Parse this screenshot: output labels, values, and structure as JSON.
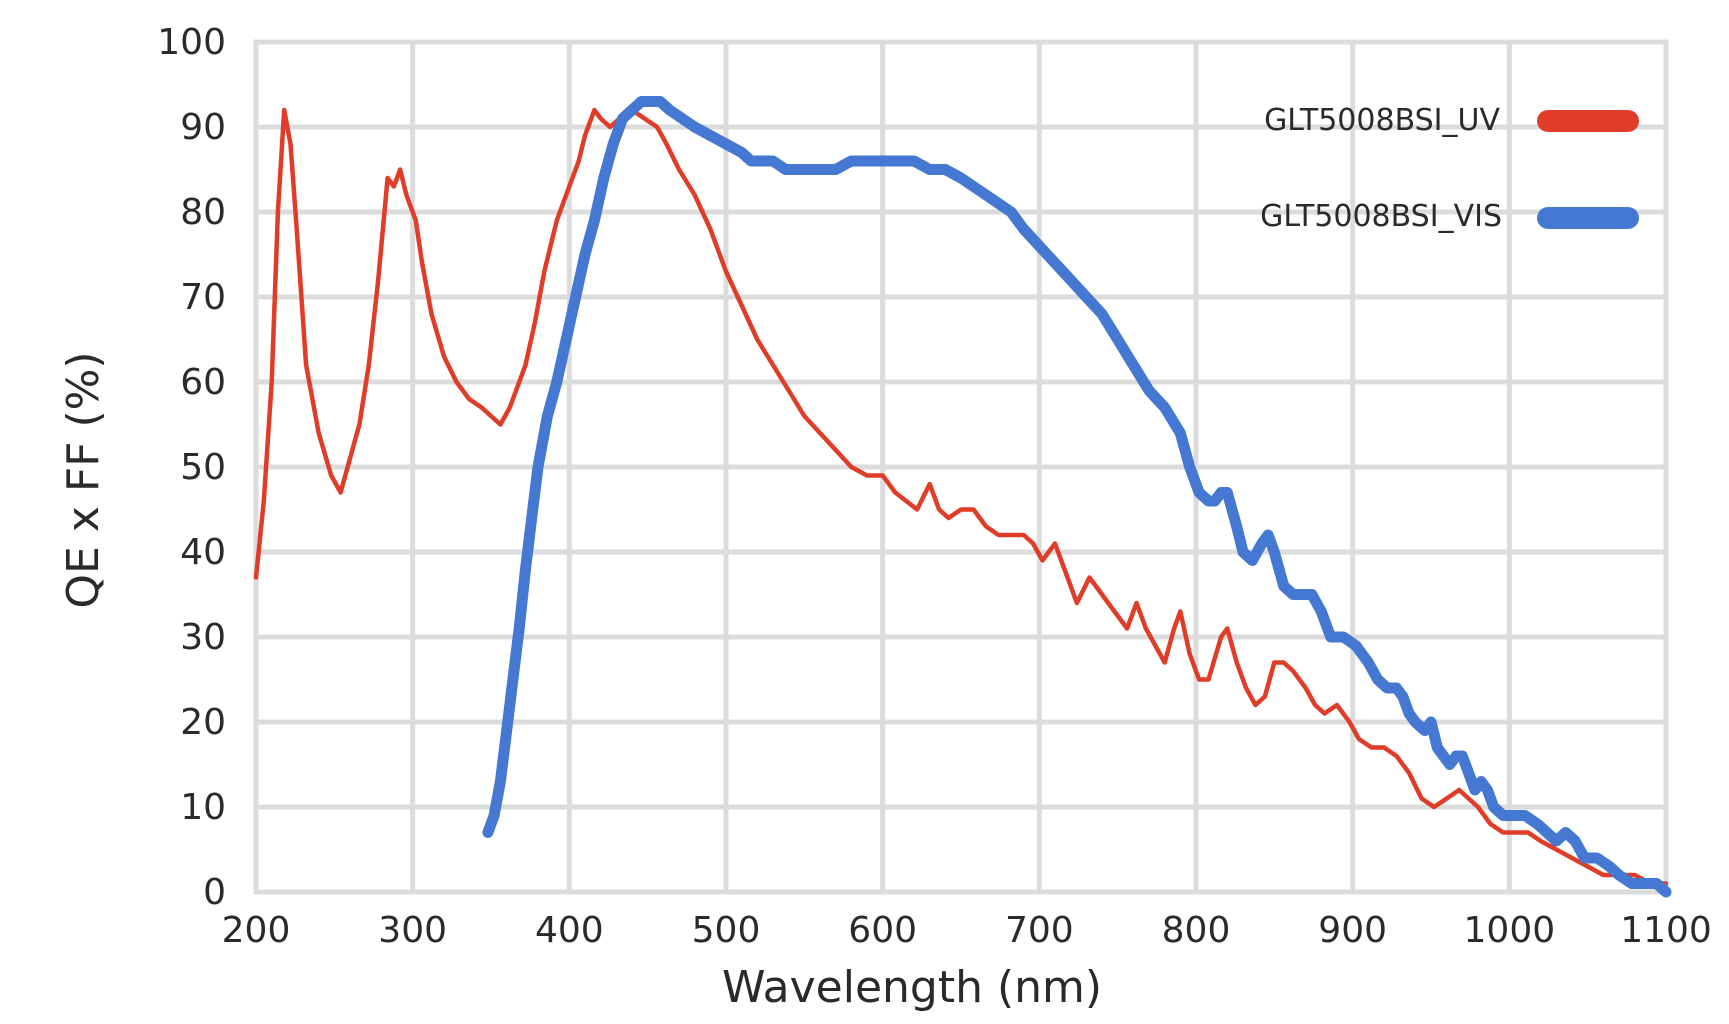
{
  "chart_data": {
    "type": "line",
    "title": "",
    "xlabel": "Wavelength (nm)",
    "ylabel": "QE x FF (%)",
    "xlim": [
      200,
      1100
    ],
    "ylim": [
      0,
      100
    ],
    "x_ticks": [
      200,
      300,
      400,
      500,
      600,
      700,
      800,
      900,
      1000,
      1100
    ],
    "y_ticks": [
      0,
      10,
      20,
      30,
      40,
      50,
      60,
      70,
      80,
      90,
      100
    ],
    "grid": true,
    "legend_position": "top-right",
    "series": [
      {
        "name": "GLT5008BSI_UV",
        "color": "#e03c28",
        "line_width": "thin",
        "points": [
          [
            200,
            37
          ],
          [
            205,
            46
          ],
          [
            210,
            60
          ],
          [
            214,
            80
          ],
          [
            218,
            92
          ],
          [
            222,
            88
          ],
          [
            226,
            78
          ],
          [
            232,
            62
          ],
          [
            240,
            54
          ],
          [
            248,
            49
          ],
          [
            254,
            47
          ],
          [
            260,
            51
          ],
          [
            266,
            55
          ],
          [
            272,
            62
          ],
          [
            278,
            72
          ],
          [
            284,
            84
          ],
          [
            288,
            83
          ],
          [
            292,
            85
          ],
          [
            296,
            82
          ],
          [
            302,
            79
          ],
          [
            306,
            74
          ],
          [
            312,
            68
          ],
          [
            320,
            63
          ],
          [
            328,
            60
          ],
          [
            336,
            58
          ],
          [
            344,
            57
          ],
          [
            350,
            56
          ],
          [
            356,
            55
          ],
          [
            362,
            57
          ],
          [
            366,
            59
          ],
          [
            372,
            62
          ],
          [
            378,
            67
          ],
          [
            384,
            73
          ],
          [
            392,
            79
          ],
          [
            400,
            83
          ],
          [
            406,
            86
          ],
          [
            410,
            89
          ],
          [
            416,
            92
          ],
          [
            420,
            91
          ],
          [
            426,
            90
          ],
          [
            432,
            91
          ],
          [
            440,
            92
          ],
          [
            448,
            91
          ],
          [
            456,
            90
          ],
          [
            462,
            88
          ],
          [
            470,
            85
          ],
          [
            480,
            82
          ],
          [
            490,
            78
          ],
          [
            500,
            73
          ],
          [
            510,
            69
          ],
          [
            520,
            65
          ],
          [
            530,
            62
          ],
          [
            540,
            59
          ],
          [
            550,
            56
          ],
          [
            560,
            54
          ],
          [
            570,
            52
          ],
          [
            580,
            50
          ],
          [
            590,
            49
          ],
          [
            600,
            49
          ],
          [
            608,
            47
          ],
          [
            615,
            46
          ],
          [
            622,
            45
          ],
          [
            630,
            48
          ],
          [
            636,
            45
          ],
          [
            642,
            44
          ],
          [
            650,
            45
          ],
          [
            658,
            45
          ],
          [
            666,
            43
          ],
          [
            674,
            42
          ],
          [
            682,
            42
          ],
          [
            690,
            42
          ],
          [
            696,
            41
          ],
          [
            702,
            39
          ],
          [
            710,
            41
          ],
          [
            718,
            37
          ],
          [
            724,
            34
          ],
          [
            732,
            37
          ],
          [
            740,
            35
          ],
          [
            748,
            33
          ],
          [
            756,
            31
          ],
          [
            762,
            34
          ],
          [
            768,
            31
          ],
          [
            774,
            29
          ],
          [
            780,
            27
          ],
          [
            786,
            31
          ],
          [
            790,
            33
          ],
          [
            796,
            28
          ],
          [
            802,
            25
          ],
          [
            808,
            25
          ],
          [
            816,
            30
          ],
          [
            820,
            31
          ],
          [
            826,
            27
          ],
          [
            832,
            24
          ],
          [
            838,
            22
          ],
          [
            844,
            23
          ],
          [
            850,
            27
          ],
          [
            856,
            27
          ],
          [
            862,
            26
          ],
          [
            870,
            24
          ],
          [
            876,
            22
          ],
          [
            882,
            21
          ],
          [
            890,
            22
          ],
          [
            898,
            20
          ],
          [
            904,
            18
          ],
          [
            912,
            17
          ],
          [
            920,
            17
          ],
          [
            928,
            16
          ],
          [
            936,
            14
          ],
          [
            944,
            11
          ],
          [
            952,
            10
          ],
          [
            960,
            11
          ],
          [
            968,
            12
          ],
          [
            974,
            11
          ],
          [
            980,
            10
          ],
          [
            988,
            8
          ],
          [
            996,
            7
          ],
          [
            1004,
            7
          ],
          [
            1012,
            7
          ],
          [
            1020,
            6
          ],
          [
            1030,
            5
          ],
          [
            1040,
            4
          ],
          [
            1050,
            3
          ],
          [
            1060,
            2
          ],
          [
            1070,
            2
          ],
          [
            1080,
            2
          ],
          [
            1090,
            1
          ],
          [
            1100,
            1
          ]
        ]
      },
      {
        "name": "GLT5008BSI_VIS",
        "color": "#4578d2",
        "line_width": "thick",
        "points": [
          [
            348,
            7
          ],
          [
            352,
            9
          ],
          [
            356,
            13
          ],
          [
            360,
            19
          ],
          [
            364,
            25
          ],
          [
            368,
            31
          ],
          [
            372,
            38
          ],
          [
            376,
            44
          ],
          [
            380,
            50
          ],
          [
            386,
            56
          ],
          [
            392,
            60
          ],
          [
            398,
            65
          ],
          [
            404,
            70
          ],
          [
            410,
            75
          ],
          [
            416,
            79
          ],
          [
            422,
            84
          ],
          [
            428,
            88
          ],
          [
            434,
            91
          ],
          [
            440,
            92
          ],
          [
            446,
            93
          ],
          [
            452,
            93
          ],
          [
            458,
            93
          ],
          [
            464,
            92
          ],
          [
            472,
            91
          ],
          [
            480,
            90
          ],
          [
            490,
            89
          ],
          [
            500,
            88
          ],
          [
            510,
            87
          ],
          [
            516,
            86
          ],
          [
            522,
            86
          ],
          [
            530,
            86
          ],
          [
            538,
            85
          ],
          [
            546,
            85
          ],
          [
            554,
            85
          ],
          [
            562,
            85
          ],
          [
            570,
            85
          ],
          [
            580,
            86
          ],
          [
            590,
            86
          ],
          [
            600,
            86
          ],
          [
            610,
            86
          ],
          [
            620,
            86
          ],
          [
            630,
            85
          ],
          [
            640,
            85
          ],
          [
            650,
            84
          ],
          [
            658,
            83
          ],
          [
            666,
            82
          ],
          [
            674,
            81
          ],
          [
            682,
            80
          ],
          [
            690,
            78
          ],
          [
            700,
            76
          ],
          [
            710,
            74
          ],
          [
            720,
            72
          ],
          [
            730,
            70
          ],
          [
            740,
            68
          ],
          [
            750,
            65
          ],
          [
            760,
            62
          ],
          [
            770,
            59
          ],
          [
            780,
            57
          ],
          [
            790,
            54
          ],
          [
            796,
            50
          ],
          [
            802,
            47
          ],
          [
            808,
            46
          ],
          [
            812,
            46
          ],
          [
            816,
            47
          ],
          [
            820,
            47
          ],
          [
            826,
            43
          ],
          [
            830,
            40
          ],
          [
            836,
            39
          ],
          [
            842,
            41
          ],
          [
            846,
            42
          ],
          [
            850,
            40
          ],
          [
            856,
            36
          ],
          [
            862,
            35
          ],
          [
            868,
            35
          ],
          [
            874,
            35
          ],
          [
            880,
            33
          ],
          [
            886,
            30
          ],
          [
            894,
            30
          ],
          [
            902,
            29
          ],
          [
            910,
            27
          ],
          [
            916,
            25
          ],
          [
            922,
            24
          ],
          [
            928,
            24
          ],
          [
            932,
            23
          ],
          [
            936,
            21
          ],
          [
            940,
            20
          ],
          [
            946,
            19
          ],
          [
            950,
            20
          ],
          [
            954,
            17
          ],
          [
            958,
            16
          ],
          [
            962,
            15
          ],
          [
            966,
            16
          ],
          [
            970,
            16
          ],
          [
            974,
            14
          ],
          [
            978,
            12
          ],
          [
            982,
            13
          ],
          [
            986,
            12
          ],
          [
            990,
            10
          ],
          [
            996,
            9
          ],
          [
            1002,
            9
          ],
          [
            1010,
            9
          ],
          [
            1018,
            8
          ],
          [
            1024,
            7
          ],
          [
            1030,
            6
          ],
          [
            1036,
            7
          ],
          [
            1042,
            6
          ],
          [
            1048,
            4
          ],
          [
            1056,
            4
          ],
          [
            1064,
            3
          ],
          [
            1070,
            2
          ],
          [
            1078,
            1
          ],
          [
            1086,
            1
          ],
          [
            1094,
            1
          ],
          [
            1100,
            0
          ]
        ]
      }
    ]
  }
}
